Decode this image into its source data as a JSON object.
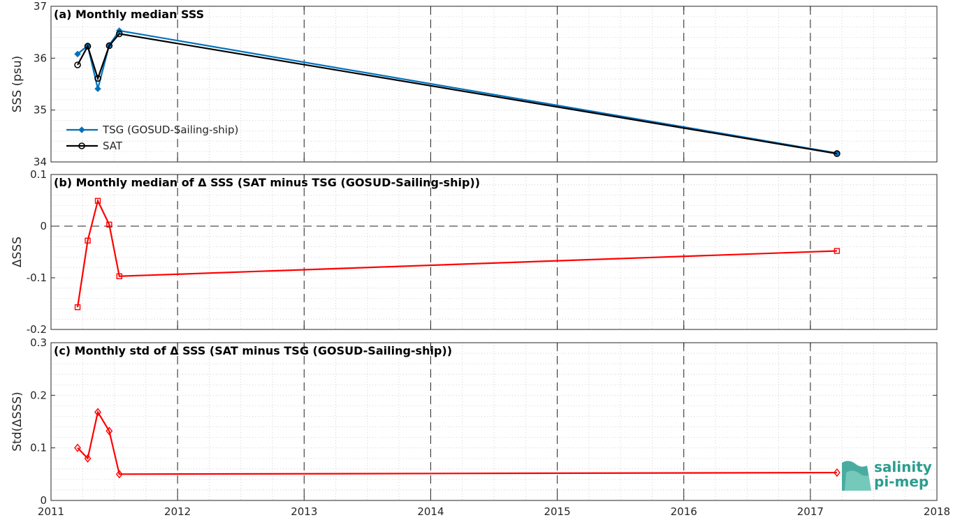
{
  "chart_data": [
    {
      "type": "line",
      "title": "(a) Monthly median SSS",
      "ylabel": "SSS (psu)",
      "xlim": [
        2011,
        2018
      ],
      "ylim": [
        34,
        37
      ],
      "yticks": [
        34,
        35,
        36,
        37
      ],
      "grid": true,
      "legend_position": "bottom-left",
      "x": [
        2011.21,
        2011.29,
        2011.37,
        2011.46,
        2011.54,
        2017.21
      ],
      "series": [
        {
          "name": "TSG (GOSUD-Sailing-ship)",
          "color": "#0072bd",
          "marker": "diamond-filled",
          "values": [
            36.08,
            36.24,
            35.41,
            36.25,
            36.53,
            34.17
          ]
        },
        {
          "name": "SAT",
          "color": "#000000",
          "marker": "circle-open",
          "values": [
            35.87,
            36.23,
            35.61,
            36.24,
            36.47,
            34.16
          ]
        }
      ]
    },
    {
      "type": "line",
      "title": "(b) Monthly median of Δ SSS (SAT minus TSG (GOSUD-Sailing-ship))",
      "ylabel": "ΔSSS",
      "xlim": [
        2011,
        2018
      ],
      "ylim": [
        -0.2,
        0.1
      ],
      "yticks": [
        -0.2,
        -0.1,
        0,
        0.1
      ],
      "ytick_labels": [
        "-0.2",
        "-0.1",
        "0",
        "0.1"
      ],
      "zero_line": true,
      "grid": true,
      "x": [
        2011.21,
        2011.29,
        2011.37,
        2011.46,
        2011.54,
        2017.21
      ],
      "series": [
        {
          "color": "#ff0000",
          "marker": "square-open",
          "values": [
            -0.157,
            -0.028,
            0.049,
            0.003,
            -0.097,
            -0.048
          ]
        }
      ]
    },
    {
      "type": "line",
      "title": "(c) Monthly std of Δ SSS (SAT minus TSG (GOSUD-Sailing-ship))",
      "ylabel": "Std(ΔSSS)",
      "xlim": [
        2011,
        2018
      ],
      "ylim": [
        0,
        0.3
      ],
      "yticks": [
        0,
        0.1,
        0.2,
        0.3
      ],
      "ytick_labels": [
        "0",
        "0.1",
        "0.2",
        "0.3"
      ],
      "grid": true,
      "xticks": [
        2011,
        2012,
        2013,
        2014,
        2015,
        2016,
        2017,
        2018
      ],
      "x": [
        2011.21,
        2011.29,
        2011.37,
        2011.46,
        2011.54,
        2017.21
      ],
      "series": [
        {
          "color": "#ff0000",
          "marker": "diamond-open",
          "values": [
            0.1,
            0.08,
            0.168,
            0.132,
            0.05,
            0.053
          ]
        }
      ]
    }
  ],
  "logo": {
    "line1": "salinity",
    "line2": "pi-mep",
    "color": "#2a9d8f"
  }
}
